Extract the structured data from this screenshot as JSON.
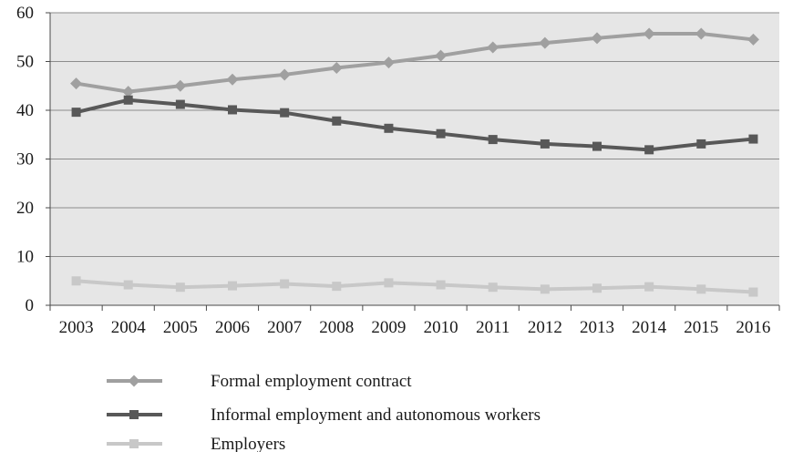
{
  "chart_data": {
    "type": "line",
    "categories": [
      "2003",
      "2004",
      "2005",
      "2006",
      "2007",
      "2008",
      "2009",
      "2010",
      "2011",
      "2012",
      "2013",
      "2014",
      "2015",
      "2016"
    ],
    "ylim": [
      0,
      60
    ],
    "yticks": [
      0,
      10,
      20,
      30,
      40,
      50,
      60
    ],
    "ytick_labels": [
      "0",
      "10",
      "20",
      "30",
      "40",
      "50",
      "60"
    ],
    "grid": "horizontal",
    "plot_background": "#e6e6e6",
    "legend_position": "bottom",
    "series": [
      {
        "name": "Formal employment contract",
        "color": "#a0a0a0",
        "marker": "diamond",
        "values": [
          45.5,
          43.8,
          45.0,
          46.3,
          47.3,
          48.7,
          49.8,
          51.2,
          52.9,
          53.8,
          54.8,
          55.7,
          55.7,
          54.5
        ]
      },
      {
        "name": "Informal employment and autonomous workers",
        "color": "#585858",
        "marker": "square",
        "values": [
          39.6,
          42.1,
          41.2,
          40.1,
          39.5,
          37.8,
          36.3,
          35.2,
          34.0,
          33.1,
          32.6,
          31.9,
          33.1,
          34.1
        ]
      },
      {
        "name": "Employers",
        "color": "#c8c8c8",
        "marker": "square",
        "values": [
          5.0,
          4.2,
          3.7,
          4.0,
          4.4,
          3.9,
          4.6,
          4.2,
          3.7,
          3.3,
          3.5,
          3.8,
          3.3,
          2.7
        ]
      }
    ]
  }
}
